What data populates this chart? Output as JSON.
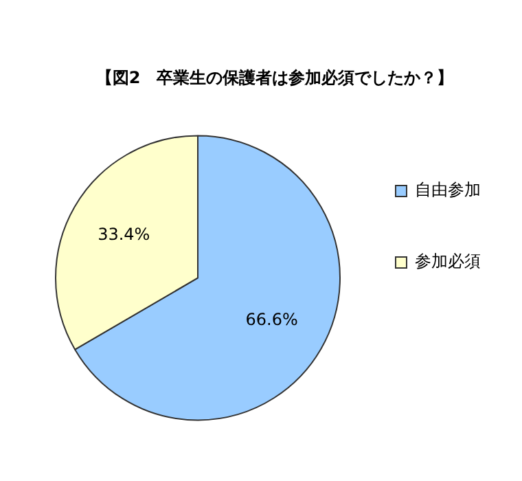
{
  "chart_data": {
    "type": "pie",
    "title": "【図2　卒業生の保護者は参加必須でしたか？】",
    "categories": [
      "自由参加",
      "参加必須"
    ],
    "values": [
      66.6,
      33.4
    ],
    "colors": [
      "#99ccff",
      "#ffffcc"
    ],
    "value_labels": [
      "66.6%",
      "33.4%"
    ],
    "legend": "right"
  }
}
